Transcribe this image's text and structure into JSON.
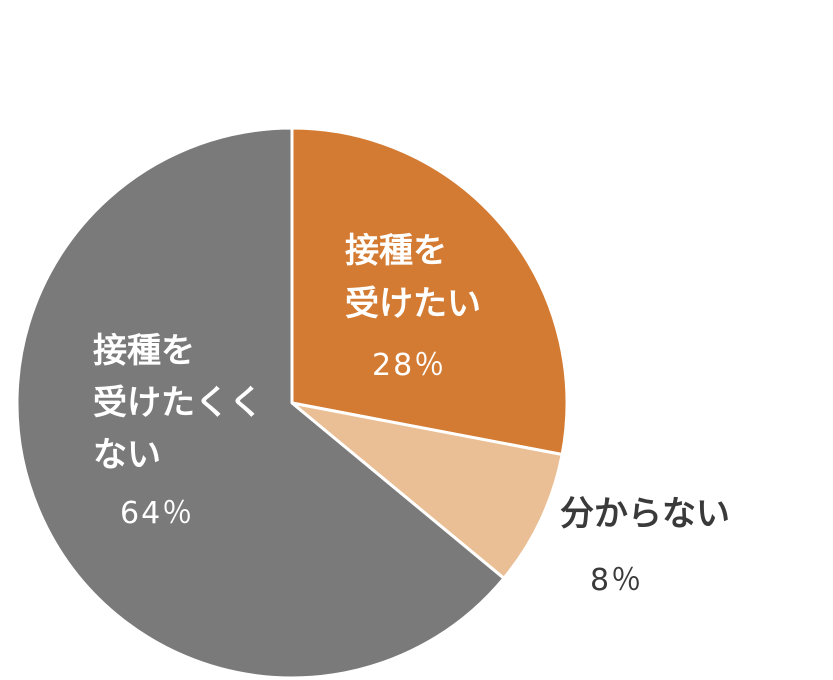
{
  "chart_data": {
    "type": "pie",
    "slices": [
      {
        "label_lines": [
          "接種を",
          "受けたい"
        ],
        "percent_label": "28％",
        "value": 28,
        "color": "#d47b33",
        "label_color": "#ffffff"
      },
      {
        "label_lines": [
          "分からない"
        ],
        "percent_label": "8％",
        "value": 8,
        "color": "#ebbf95",
        "label_color": "#3a3a3a"
      },
      {
        "label_lines": [
          "接種を",
          "受けたくく",
          "ない"
        ],
        "percent_label": "64％",
        "value": 64,
        "color": "#7a7a7a",
        "label_color": "#ffffff"
      }
    ]
  }
}
